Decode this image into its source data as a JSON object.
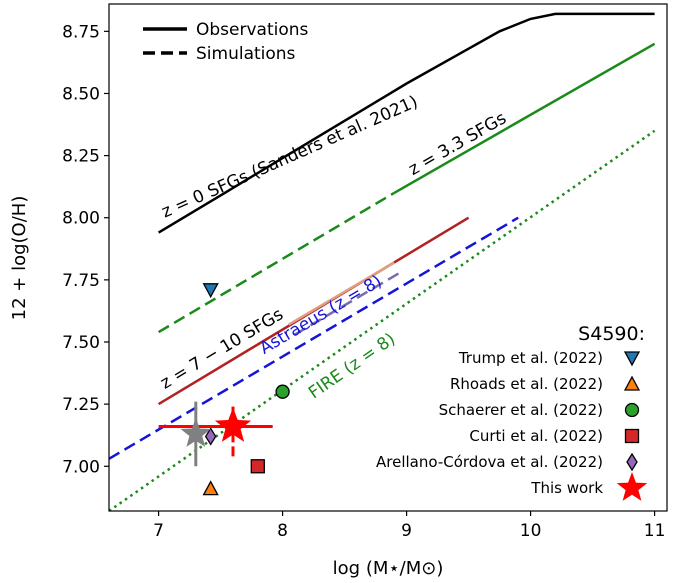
{
  "chart_data": {
    "type": "scatter",
    "xlabel": "log (M⋆/M⊙)",
    "ylabel": "12 + log(O/H)",
    "xlim": [
      6.6,
      11.1
    ],
    "ylim": [
      6.82,
      8.86
    ],
    "xticks": [
      7,
      8,
      9,
      10,
      11
    ],
    "yticks": [
      7.0,
      7.25,
      7.5,
      7.75,
      8.0,
      8.25,
      8.5,
      8.75
    ],
    "grid": false,
    "style_legend": {
      "placement": "top-left",
      "entries": [
        {
          "label": "Observations",
          "style": "solid"
        },
        {
          "label": "Simulations",
          "style": "dashed"
        }
      ]
    },
    "points_legend": {
      "placement": "bottom-right",
      "title": "S4590:",
      "entries": [
        {
          "label": "Trump et al. (2022)",
          "marker": "triangle-down",
          "color": "#1f77b4"
        },
        {
          "label": "Rhoads et al. (2022)",
          "marker": "triangle-up",
          "color": "#ff7f0e"
        },
        {
          "label": "Schaerer et al. (2022)",
          "marker": "circle",
          "color": "#2ca02c"
        },
        {
          "label": "Curti et al. (2022)",
          "marker": "square",
          "color": "#d62728"
        },
        {
          "label": "Arellano-Córdova et al. (2022)",
          "marker": "diamond",
          "color": "#9467bd"
        },
        {
          "label": "This work",
          "marker": "star",
          "color": "#ff0000"
        }
      ]
    },
    "series": [
      {
        "key": "z0",
        "name": "z = 0 SFGs (Sanders et al. 2021)",
        "color": "#000000",
        "style": "solid",
        "points": [
          [
            7.0,
            7.94
          ],
          [
            7.5,
            8.09
          ],
          [
            8.0,
            8.24
          ],
          [
            8.5,
            8.39
          ],
          [
            9.0,
            8.54
          ],
          [
            9.5,
            8.68
          ],
          [
            9.75,
            8.75
          ],
          [
            10.0,
            8.8
          ],
          [
            10.2,
            8.82
          ],
          [
            10.5,
            8.82
          ],
          [
            11.0,
            8.82
          ]
        ]
      },
      {
        "key": "z33_dash",
        "name": "",
        "color": "#1a8a1a",
        "style": "dashed",
        "points": [
          [
            7.0,
            7.54
          ],
          [
            8.9,
            8.1
          ]
        ]
      },
      {
        "key": "z33_solid",
        "name": "z = 3.3 SFGs",
        "color": "#1a8a1a",
        "style": "solid",
        "points": [
          [
            8.9,
            8.1
          ],
          [
            11.0,
            8.7
          ]
        ]
      },
      {
        "key": "z710",
        "name": "z = 7 − 10 SFGs",
        "color": "#b22222",
        "style": "solid",
        "points": [
          [
            7.0,
            7.25
          ],
          [
            9.5,
            8.0
          ]
        ]
      },
      {
        "key": "astraeus_tan",
        "name": "",
        "color": "#e0a080",
        "style": "solid",
        "points": [
          [
            8.05,
            7.57
          ],
          [
            8.9,
            7.82
          ]
        ]
      },
      {
        "key": "astraeus",
        "name": "Astraeus (z = 8)",
        "color": "#1515d6",
        "style": "dashed",
        "points": [
          [
            6.6,
            7.03
          ],
          [
            9.9,
            8.0
          ]
        ]
      },
      {
        "key": "astraeus_purple",
        "name": "",
        "color": "#7a6ab0",
        "style": "dashed",
        "points": [
          [
            8.1,
            7.53
          ],
          [
            8.95,
            7.78
          ]
        ]
      },
      {
        "key": "fire",
        "name": "FIRE (z = 8)",
        "color": "#1a8a1a",
        "style": "dotted",
        "points": [
          [
            6.6,
            6.82
          ],
          [
            11.0,
            8.35
          ]
        ]
      }
    ],
    "line_labels": [
      {
        "text": "z = 0 SFGs (Sanders et al. 2021)",
        "x": 7.05,
        "y": 8.0,
        "color": "#000000",
        "slope_ref": "z0"
      },
      {
        "text": "z = 3.3 SFGs",
        "x": 9.05,
        "y": 8.17,
        "color": "#000000",
        "slope_ref": "z33_solid"
      },
      {
        "text": "z = 7 − 10 SFGs",
        "x": 7.05,
        "y": 7.31,
        "color": "#000000",
        "slope_ref": "z710"
      },
      {
        "text": "Astraeus (z = 8)",
        "x": 7.85,
        "y": 7.45,
        "color": "#1515d6",
        "slope_ref": "astraeus"
      },
      {
        "text": "FIRE (z = 8)",
        "x": 8.25,
        "y": 7.27,
        "color": "#1a8a1a",
        "slope_ref": "fire"
      }
    ],
    "points": [
      {
        "name": "Trump et al. (2022)",
        "marker": "triangle-down",
        "color": "#1f77b4",
        "x": 7.42,
        "y": 7.71
      },
      {
        "name": "Rhoads et al. (2022)",
        "marker": "triangle-up",
        "color": "#ff7f0e",
        "x": 7.42,
        "y": 6.91
      },
      {
        "name": "Schaerer et al. (2022)",
        "marker": "circle",
        "color": "#2ca02c",
        "x": 8.0,
        "y": 7.3
      },
      {
        "name": "Curti et al. (2022)",
        "marker": "square",
        "color": "#d62728",
        "x": 7.8,
        "y": 7.0
      },
      {
        "name": "Arellano-Córdova et al. (2022)",
        "marker": "diamond",
        "color": "#9467bd",
        "x": 7.42,
        "y": 7.12
      },
      {
        "name": "This work",
        "marker": "star",
        "color": "#ff0000",
        "x": 7.6,
        "y": 7.16,
        "xerr": [
          0.6,
          0.32
        ],
        "yerr": [
          0.12,
          0.08
        ]
      },
      {
        "name": "",
        "marker": "star",
        "color": "#808080",
        "x": 7.3,
        "y": 7.13,
        "xerr": [
          0,
          0
        ],
        "yerr": [
          0.13,
          0.13
        ]
      }
    ]
  }
}
